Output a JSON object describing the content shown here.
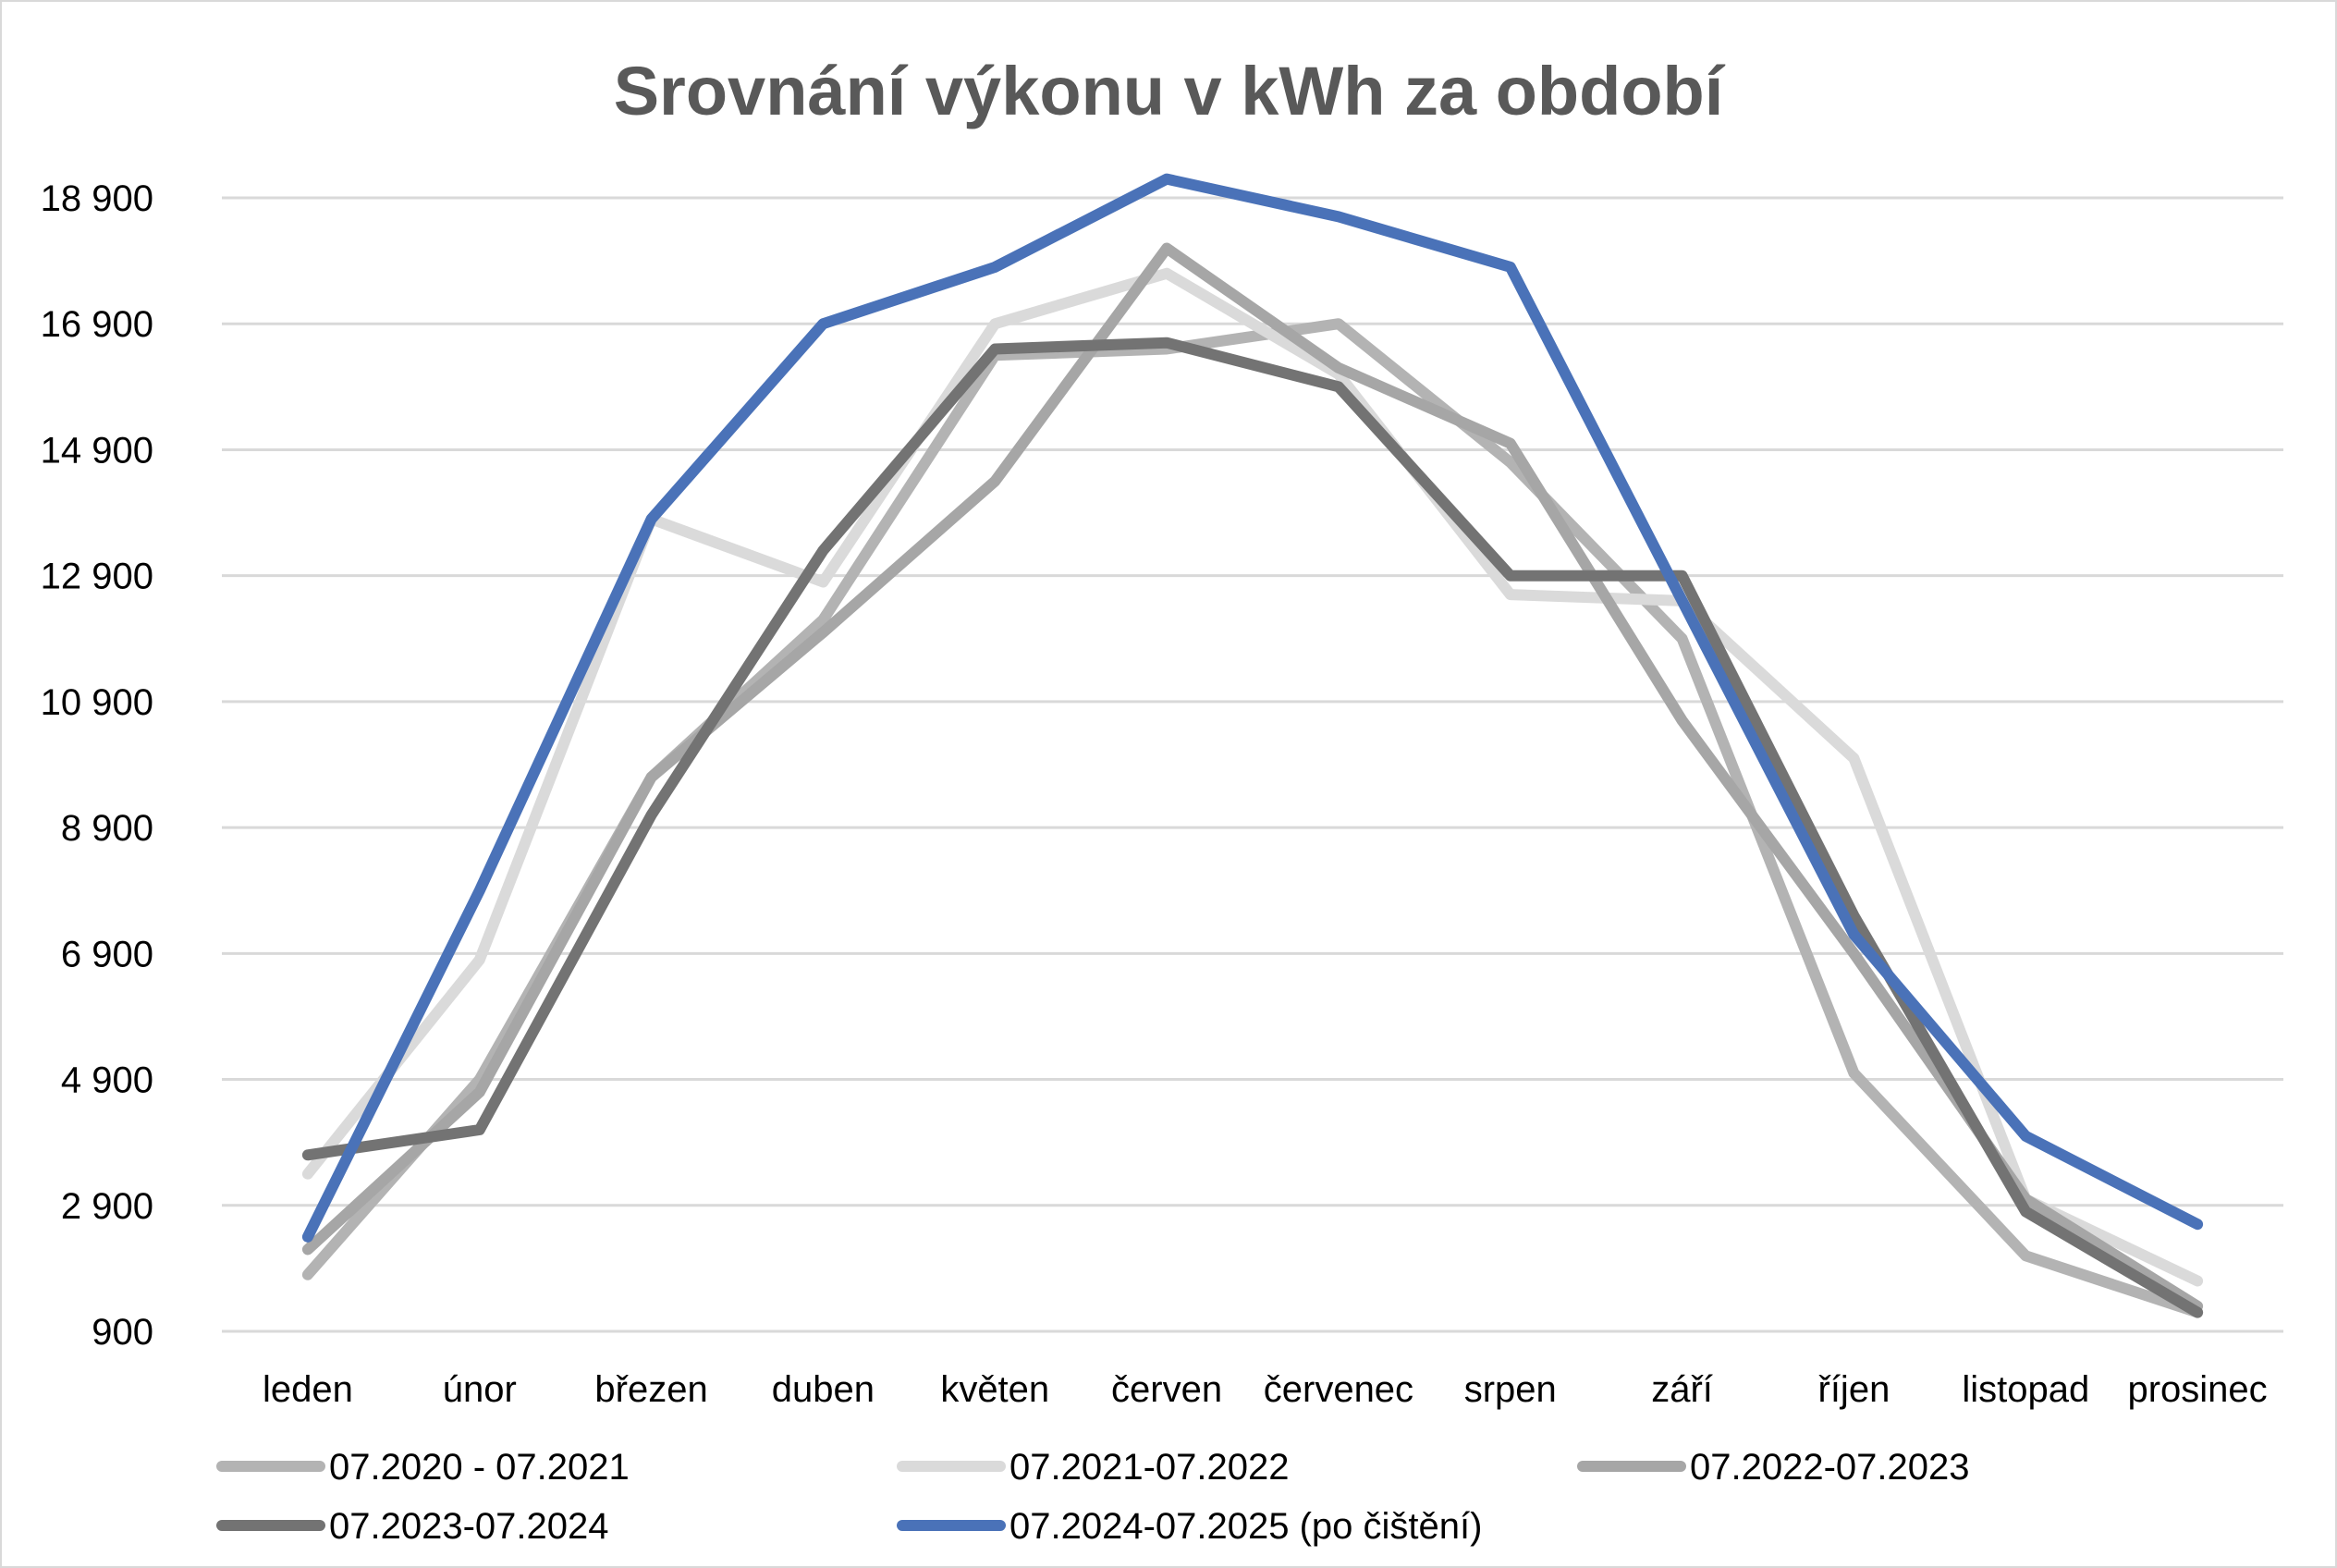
{
  "chart_data": {
    "type": "line",
    "title": "Srovnání výkonu v kWh za období",
    "xlabel": "",
    "ylabel": "",
    "categories": [
      "leden",
      "únor",
      "březen",
      "duben",
      "květen",
      "červen",
      "červenec",
      "srpen",
      "září",
      "říjen",
      "listopad",
      "prosinec"
    ],
    "yticks": [
      "18 900",
      "16 900",
      "14 900",
      "12 900",
      "10 900",
      "8 900",
      "6 900",
      "4 900",
      "2 900",
      "900"
    ],
    "ylim": [
      900,
      18900
    ],
    "grid": true,
    "legend_position": "bottom",
    "series": [
      {
        "name": "07.2020 - 07.2021",
        "color": "#b3b3b3",
        "values": [
          1800,
          4900,
          9700,
          12200,
          16400,
          16500,
          16900,
          14700,
          11900,
          5000,
          2100,
          1200
        ]
      },
      {
        "name": "07.2021-07.2022",
        "color": "#dadada",
        "values": [
          3400,
          6800,
          13800,
          12800,
          16900,
          17700,
          16100,
          12600,
          12500,
          10000,
          3000,
          1700
        ]
      },
      {
        "name": "07.2022-07.2023",
        "color": "#a6a6a6",
        "values": [
          2200,
          4700,
          9700,
          12000,
          14400,
          18100,
          16200,
          15000,
          10600,
          6900,
          3000,
          1300
        ]
      },
      {
        "name": "07.2023-07.2024",
        "color": "#737373",
        "values": [
          3700,
          4100,
          9100,
          13300,
          16500,
          16600,
          15900,
          12900,
          12900,
          7500,
          2800,
          1200
        ]
      },
      {
        "name": "07.2024-07.2025 (po čištění)",
        "color": "#4a72b8",
        "values": [
          2400,
          7900,
          13800,
          16900,
          17800,
          19200,
          18600,
          17800,
          12500,
          7200,
          4000,
          2600
        ]
      }
    ]
  }
}
